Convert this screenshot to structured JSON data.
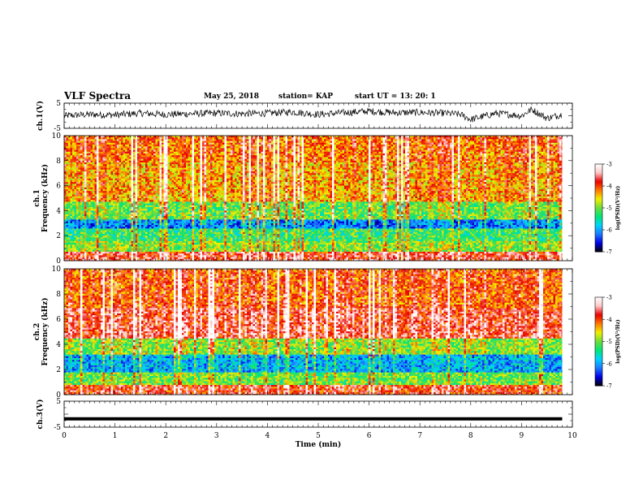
{
  "header": {
    "title": "VLF Spectra",
    "date": "May 25, 2018",
    "station": "station= KAP",
    "start": "start  UT  =   13: 20: 1"
  },
  "chart_data": [
    {
      "type": "line",
      "name": "ch1-voltage",
      "ylabel": "ch.1(V)",
      "ylim": [
        -5,
        5
      ],
      "yticks": [
        "5",
        "-5"
      ],
      "xlim": [
        0,
        9.8
      ],
      "series": [
        {
          "x": [
            0,
            0.5,
            1,
            1.5,
            2,
            2.5,
            3,
            3.5,
            4,
            4.5,
            5,
            5.5,
            6,
            6.5,
            7,
            7.5,
            7.8,
            8,
            8.5,
            9,
            9.2,
            9.5,
            9.8
          ],
          "values": [
            0,
            0.5,
            0.3,
            1,
            0.5,
            0.8,
            1,
            0.8,
            1,
            1.5,
            0.5,
            1.2,
            1.8,
            1.2,
            1.3,
            1,
            0.5,
            -1.5,
            1,
            0,
            2.5,
            -1,
            0.5
          ]
        }
      ]
    },
    {
      "type": "heatmap",
      "name": "ch1-spectrogram",
      "ylabel": "ch.1\nFrequency (kHz)",
      "ylim": [
        0,
        10
      ],
      "yticks": [
        "0",
        "2",
        "4",
        "6",
        "8",
        "10"
      ],
      "xlim": [
        0,
        9.8
      ],
      "colorbar": {
        "label": "log(PSD)(V²/Hz)",
        "range": [
          -7,
          -3
        ],
        "ticks": [
          "-3",
          "-4",
          "-5",
          "-6",
          "-7"
        ]
      },
      "bands": [
        {
          "from": 0,
          "to": 0.8,
          "value": -3.8
        },
        {
          "from": 0.8,
          "to": 1.6,
          "value": -5
        },
        {
          "from": 1.6,
          "to": 2.6,
          "value": -5.3
        },
        {
          "from": 2.6,
          "to": 3.4,
          "value": -6.2
        },
        {
          "from": 3.4,
          "to": 4.8,
          "value": -5.1
        },
        {
          "from": 4.8,
          "to": 8,
          "value": -4.4
        },
        {
          "from": 8,
          "to": 10,
          "value": -4.2
        }
      ]
    },
    {
      "type": "heatmap",
      "name": "ch2-spectrogram",
      "ylabel": "ch.2\nFrequency (kHz)",
      "ylim": [
        0,
        10
      ],
      "yticks": [
        "0",
        "2",
        "4",
        "6",
        "8",
        "10"
      ],
      "xlim": [
        0,
        9.8
      ],
      "colorbar": {
        "label": "log(PSD)(V²/Hz)",
        "range": [
          -7,
          -3
        ],
        "ticks": [
          "-3",
          "-4",
          "-5",
          "-6",
          "-7"
        ]
      },
      "bands": [
        {
          "from": 0,
          "to": 0.8,
          "value": -3.9
        },
        {
          "from": 0.8,
          "to": 1.8,
          "value": -5.1
        },
        {
          "from": 1.8,
          "to": 3.2,
          "value": -6
        },
        {
          "from": 3.2,
          "to": 4.5,
          "value": -5
        },
        {
          "from": 4.5,
          "to": 7,
          "value": -3.8
        },
        {
          "from": 7,
          "to": 10,
          "value": -4.1
        }
      ]
    },
    {
      "type": "line",
      "name": "ch3-voltage",
      "ylabel": "ch.3(V)",
      "xlabel": "Time (min)",
      "ylim": [
        -5,
        5
      ],
      "yticks": [
        "5",
        "-5"
      ],
      "xlim": [
        0,
        10
      ],
      "xticks": [
        "0",
        "1",
        "2",
        "3",
        "4",
        "5",
        "6",
        "7",
        "8",
        "9",
        "10"
      ],
      "series": [
        {
          "x": [
            0,
            9.8
          ],
          "values": [
            -1.8,
            -1.8
          ]
        }
      ]
    }
  ],
  "colors": {
    "colormap": [
      "#000000",
      "#0000e6",
      "#1e78ff",
      "#00d2ff",
      "#00e678",
      "#6edc3c",
      "#f0f000",
      "#ff7800",
      "#e60000",
      "#ffc8c8",
      "#ffffff"
    ]
  }
}
